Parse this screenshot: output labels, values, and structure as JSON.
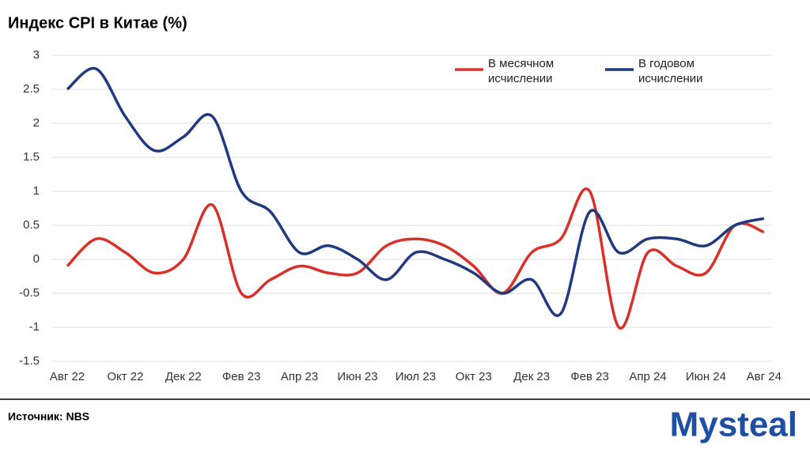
{
  "chart_data": {
    "type": "line",
    "title": "Индекс CPI в Китае (%)",
    "source": "Источник: NBS",
    "logo": "Mysteal",
    "categories": [
      "Авг 22",
      null,
      "Окт 22",
      null,
      "Дек 22",
      null,
      "Фев 23",
      null,
      "Апр 23",
      null,
      "Июн 23",
      null,
      "Июл 23",
      null,
      "Окт 23",
      null,
      "Дек 23",
      null,
      "Фев 23",
      null,
      "Апр 24",
      null,
      "Июн 24",
      null,
      "Авг 24"
    ],
    "series": [
      {
        "name": "В месячном исчислении",
        "color": "#d7312a",
        "values": [
          -0.1,
          0.3,
          0.1,
          -0.2,
          0.0,
          0.8,
          -0.5,
          -0.3,
          -0.1,
          -0.2,
          -0.2,
          0.2,
          0.3,
          0.2,
          -0.1,
          -0.5,
          0.1,
          0.3,
          1.0,
          -1.0,
          0.1,
          -0.1,
          -0.2,
          0.5,
          0.4
        ]
      },
      {
        "name": "В годовом исчислении",
        "color": "#213a7f",
        "values": [
          2.5,
          2.8,
          2.1,
          1.6,
          1.8,
          2.1,
          1.0,
          0.7,
          0.1,
          0.2,
          0.0,
          -0.3,
          0.1,
          0.0,
          -0.2,
          -0.5,
          -0.3,
          -0.8,
          0.7,
          0.1,
          0.3,
          0.3,
          0.2,
          0.5,
          0.6
        ]
      }
    ],
    "ylim": [
      -1.5,
      3
    ],
    "yticks": [
      -1.5,
      -1,
      -0.5,
      0,
      0.5,
      1,
      1.5,
      2,
      2.5,
      3
    ],
    "grid": true,
    "legend": "top-right"
  }
}
